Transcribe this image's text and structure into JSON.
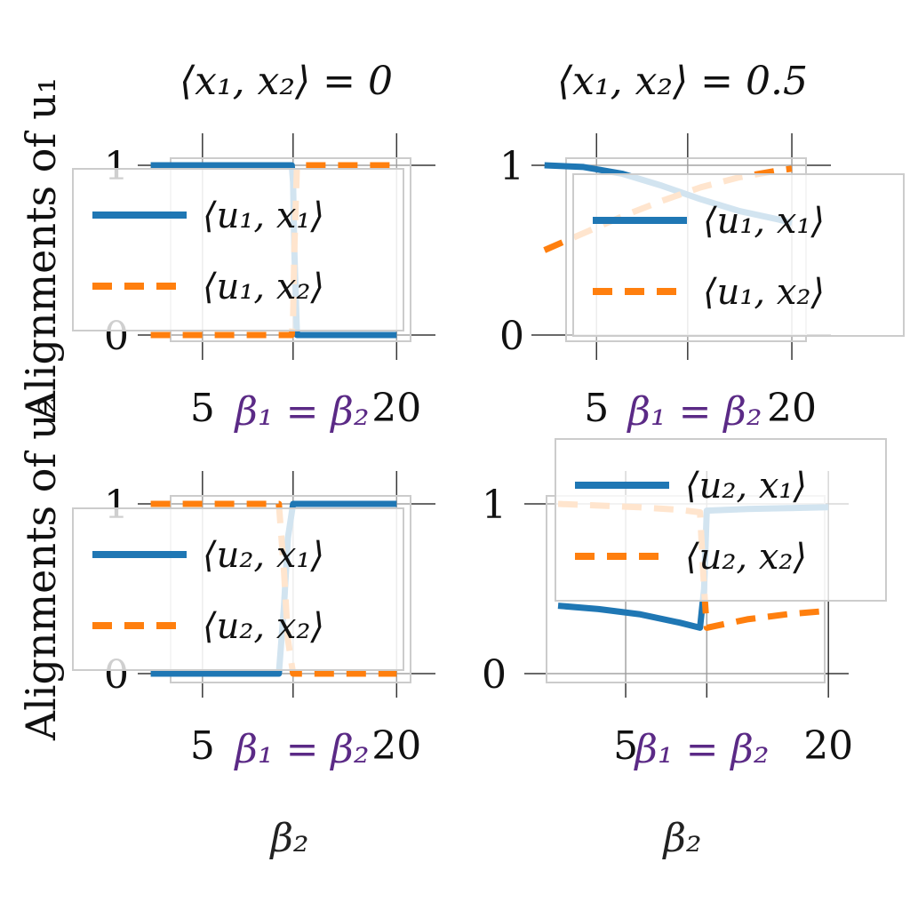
{
  "colors": {
    "series1": "#1f77b4",
    "series2": "#ff7f0e",
    "annotation": "#5b2a86",
    "grid": "#cccccc"
  },
  "figure": {
    "ylabel_top": "Alignments of u₁",
    "ylabel_bottom": "Alignments of u₂",
    "xlabel": "β₂",
    "annotation": "β₁ = β₂"
  },
  "chart_data": [
    {
      "type": "line",
      "title": "⟨x₁, x₂⟩ = 0",
      "xlim": [
        0,
        23
      ],
      "ylim": [
        -0.05,
        1.05
      ],
      "xticks": [
        5,
        20
      ],
      "yticks": [
        0,
        1
      ],
      "vline": 12,
      "series": [
        {
          "name": "⟨u₁, x₁⟩",
          "x": [
            1,
            11.9,
            12.0,
            12.1,
            12.3,
            20
          ],
          "y": [
            1,
            1,
            0.9,
            0.5,
            0,
            0
          ]
        },
        {
          "name": "⟨u₁, x₂⟩",
          "x": [
            1,
            11.9,
            12.0,
            12.1,
            12.3,
            20
          ],
          "y": [
            0,
            0,
            0.1,
            0.5,
            1,
            1
          ]
        }
      ]
    },
    {
      "type": "line",
      "title": "⟨x₁, x₂⟩ = 0.5",
      "xlim": [
        0,
        23
      ],
      "ylim": [
        -0.05,
        1.05
      ],
      "xticks": [
        5,
        20
      ],
      "yticks": [
        0,
        1
      ],
      "vline": 12,
      "series": [
        {
          "name": "⟨u₁, x₁⟩",
          "x": [
            1,
            4,
            7,
            10,
            13,
            16,
            19,
            20
          ],
          "y": [
            1.0,
            0.99,
            0.95,
            0.88,
            0.8,
            0.73,
            0.68,
            0.66
          ]
        },
        {
          "name": "⟨u₁, x₂⟩",
          "x": [
            1,
            4,
            7,
            10,
            13,
            16,
            19,
            20
          ],
          "y": [
            0.5,
            0.6,
            0.7,
            0.79,
            0.87,
            0.93,
            0.97,
            0.98
          ]
        }
      ]
    },
    {
      "type": "line",
      "title": "",
      "xlim": [
        0,
        23
      ],
      "ylim": [
        -0.05,
        1.05
      ],
      "xticks": [
        5,
        20
      ],
      "yticks": [
        0,
        1
      ],
      "vline": 12,
      "series": [
        {
          "name": "⟨u₂, x₁⟩",
          "x": [
            1,
            10.9,
            11.3,
            11.6,
            12,
            20
          ],
          "y": [
            0,
            0,
            0.4,
            0.8,
            1,
            1
          ]
        },
        {
          "name": "⟨u₂, x₂⟩",
          "x": [
            1,
            10.9,
            11.3,
            11.6,
            12,
            20
          ],
          "y": [
            1,
            1,
            0.6,
            0.2,
            0,
            0
          ]
        }
      ]
    },
    {
      "type": "line",
      "title": "",
      "xlim": [
        -2.5,
        21.5
      ],
      "ylim": [
        -0.05,
        1.05
      ],
      "xticks": [
        5,
        20
      ],
      "yticks": [
        0,
        1
      ],
      "vline": 11,
      "series": [
        {
          "name": "⟨u₂, x₁⟩",
          "x": [
            0,
            3,
            6,
            9,
            10.5,
            10.8,
            11,
            14,
            17,
            20
          ],
          "y": [
            0.4,
            0.38,
            0.35,
            0.3,
            0.27,
            0.5,
            0.96,
            0.97,
            0.975,
            0.98
          ]
        },
        {
          "name": "⟨u₂, x₂⟩",
          "x": [
            0,
            3,
            6,
            9,
            10.5,
            10.8,
            11,
            14,
            17,
            20
          ],
          "y": [
            1.0,
            0.99,
            0.98,
            0.965,
            0.95,
            0.5,
            0.27,
            0.32,
            0.35,
            0.37
          ]
        }
      ]
    }
  ]
}
